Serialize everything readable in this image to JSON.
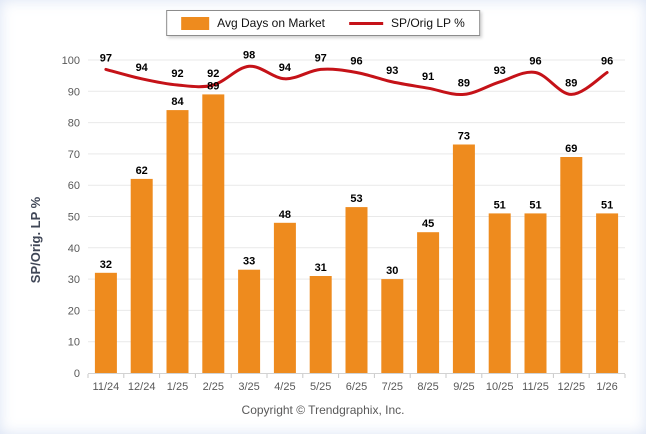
{
  "legend": {
    "bar_label": "Avg Days on Market",
    "line_label": "SP/Orig LP %"
  },
  "footer": {
    "copyright": "Copyright © Trendgraphix, Inc."
  },
  "colors": {
    "bar": "#EE8B1E",
    "line": "#C51218",
    "grid": "#E9E9E9",
    "baseline": "#D2D2D2",
    "tick": "#C8C8C8",
    "axis_text": "#595959",
    "data_label": "#000000",
    "ylabel_color": "#3F4656"
  },
  "chart_data": {
    "type": "bar",
    "categories": [
      "11/24",
      "12/24",
      "1/25",
      "2/25",
      "3/25",
      "4/25",
      "5/25",
      "6/25",
      "7/25",
      "8/25",
      "9/25",
      "10/25",
      "11/25",
      "12/25",
      "1/26"
    ],
    "series": [
      {
        "name": "Avg Days on Market",
        "type": "bar",
        "values": [
          32,
          62,
          84,
          89,
          33,
          48,
          31,
          53,
          30,
          45,
          73,
          51,
          51,
          69,
          51
        ]
      },
      {
        "name": "SP/Orig LP %",
        "type": "line",
        "values": [
          97,
          94,
          92,
          92,
          98,
          94,
          97,
          96,
          93,
          91,
          89,
          93,
          96,
          89,
          96
        ]
      }
    ],
    "title": "",
    "xlabel": "",
    "ylabel": "SP/Orig. LP %",
    "ylim": [
      0,
      100
    ],
    "ytick_step": 10,
    "grid": "horizontal",
    "legend_position": "top-center"
  }
}
